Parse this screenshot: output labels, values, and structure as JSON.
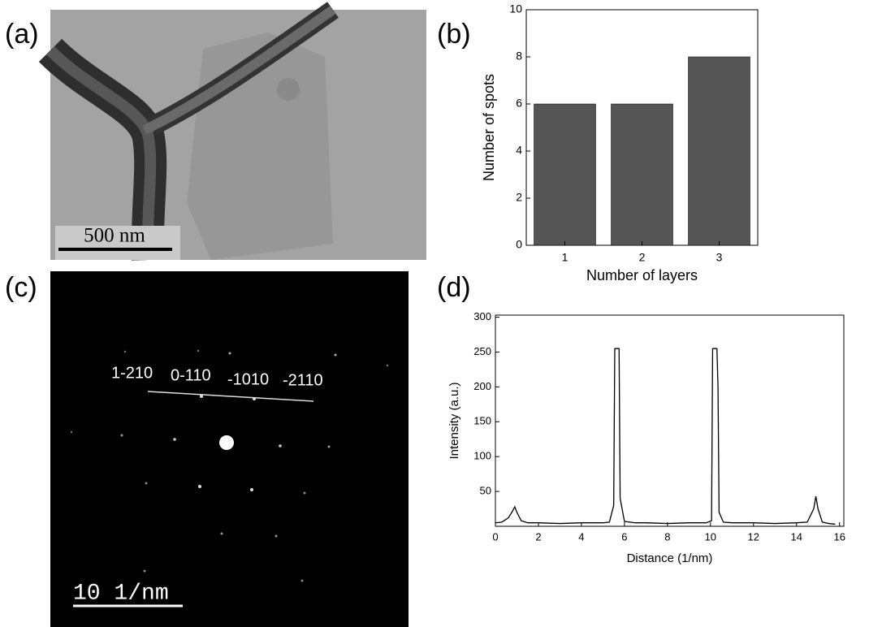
{
  "panels": {
    "a": {
      "label": "(a)",
      "scale_bar": "500 nm"
    },
    "b": {
      "label": "(b)"
    },
    "c": {
      "label": "(c)",
      "spot_labels": [
        "1-210",
        "0-110",
        "-1010",
        "-2110"
      ],
      "scale_bar": "10 1/nm"
    },
    "d": {
      "label": "(d)"
    }
  },
  "chart_data": [
    {
      "type": "bar",
      "x_label": "Number of layers",
      "y_label": "Number of spots",
      "categories": [
        "1",
        "2",
        "3"
      ],
      "values": [
        6,
        6,
        8
      ],
      "color": "#555555",
      "ylim": [
        0,
        10
      ],
      "yticks": [
        0,
        2,
        4,
        6,
        8,
        10
      ]
    },
    {
      "type": "line",
      "x_label": "Distance (1/nm)",
      "y_label": "Intensity (a.u.)",
      "x": [
        0,
        0.3,
        0.6,
        0.8,
        0.9,
        1.0,
        1.2,
        1.5,
        2,
        3,
        4,
        5,
        5.3,
        5.5,
        5.55,
        5.6,
        5.7,
        5.75,
        5.8,
        6,
        6.5,
        7,
        8,
        9,
        9.8,
        10.05,
        10.1,
        10.15,
        10.3,
        10.35,
        10.4,
        10.6,
        11,
        12,
        13,
        14,
        14.5,
        14.8,
        14.9,
        15.0,
        15.2,
        15.5,
        15.8
      ],
      "values": [
        5,
        6,
        12,
        22,
        28,
        20,
        8,
        5,
        5,
        4,
        5,
        5,
        6,
        30,
        255,
        255,
        255,
        255,
        40,
        7,
        5,
        5,
        4,
        5,
        5,
        8,
        255,
        255,
        255,
        200,
        20,
        6,
        5,
        5,
        4,
        5,
        6,
        25,
        43,
        25,
        6,
        4,
        3
      ],
      "color": "#000000",
      "xlim": [
        0,
        16.2
      ],
      "xticks": [
        0,
        2,
        4,
        6,
        8,
        10,
        12,
        14,
        16
      ],
      "ylim": [
        0,
        303
      ],
      "yticks": [
        50,
        100,
        150,
        200,
        250,
        300
      ]
    }
  ]
}
